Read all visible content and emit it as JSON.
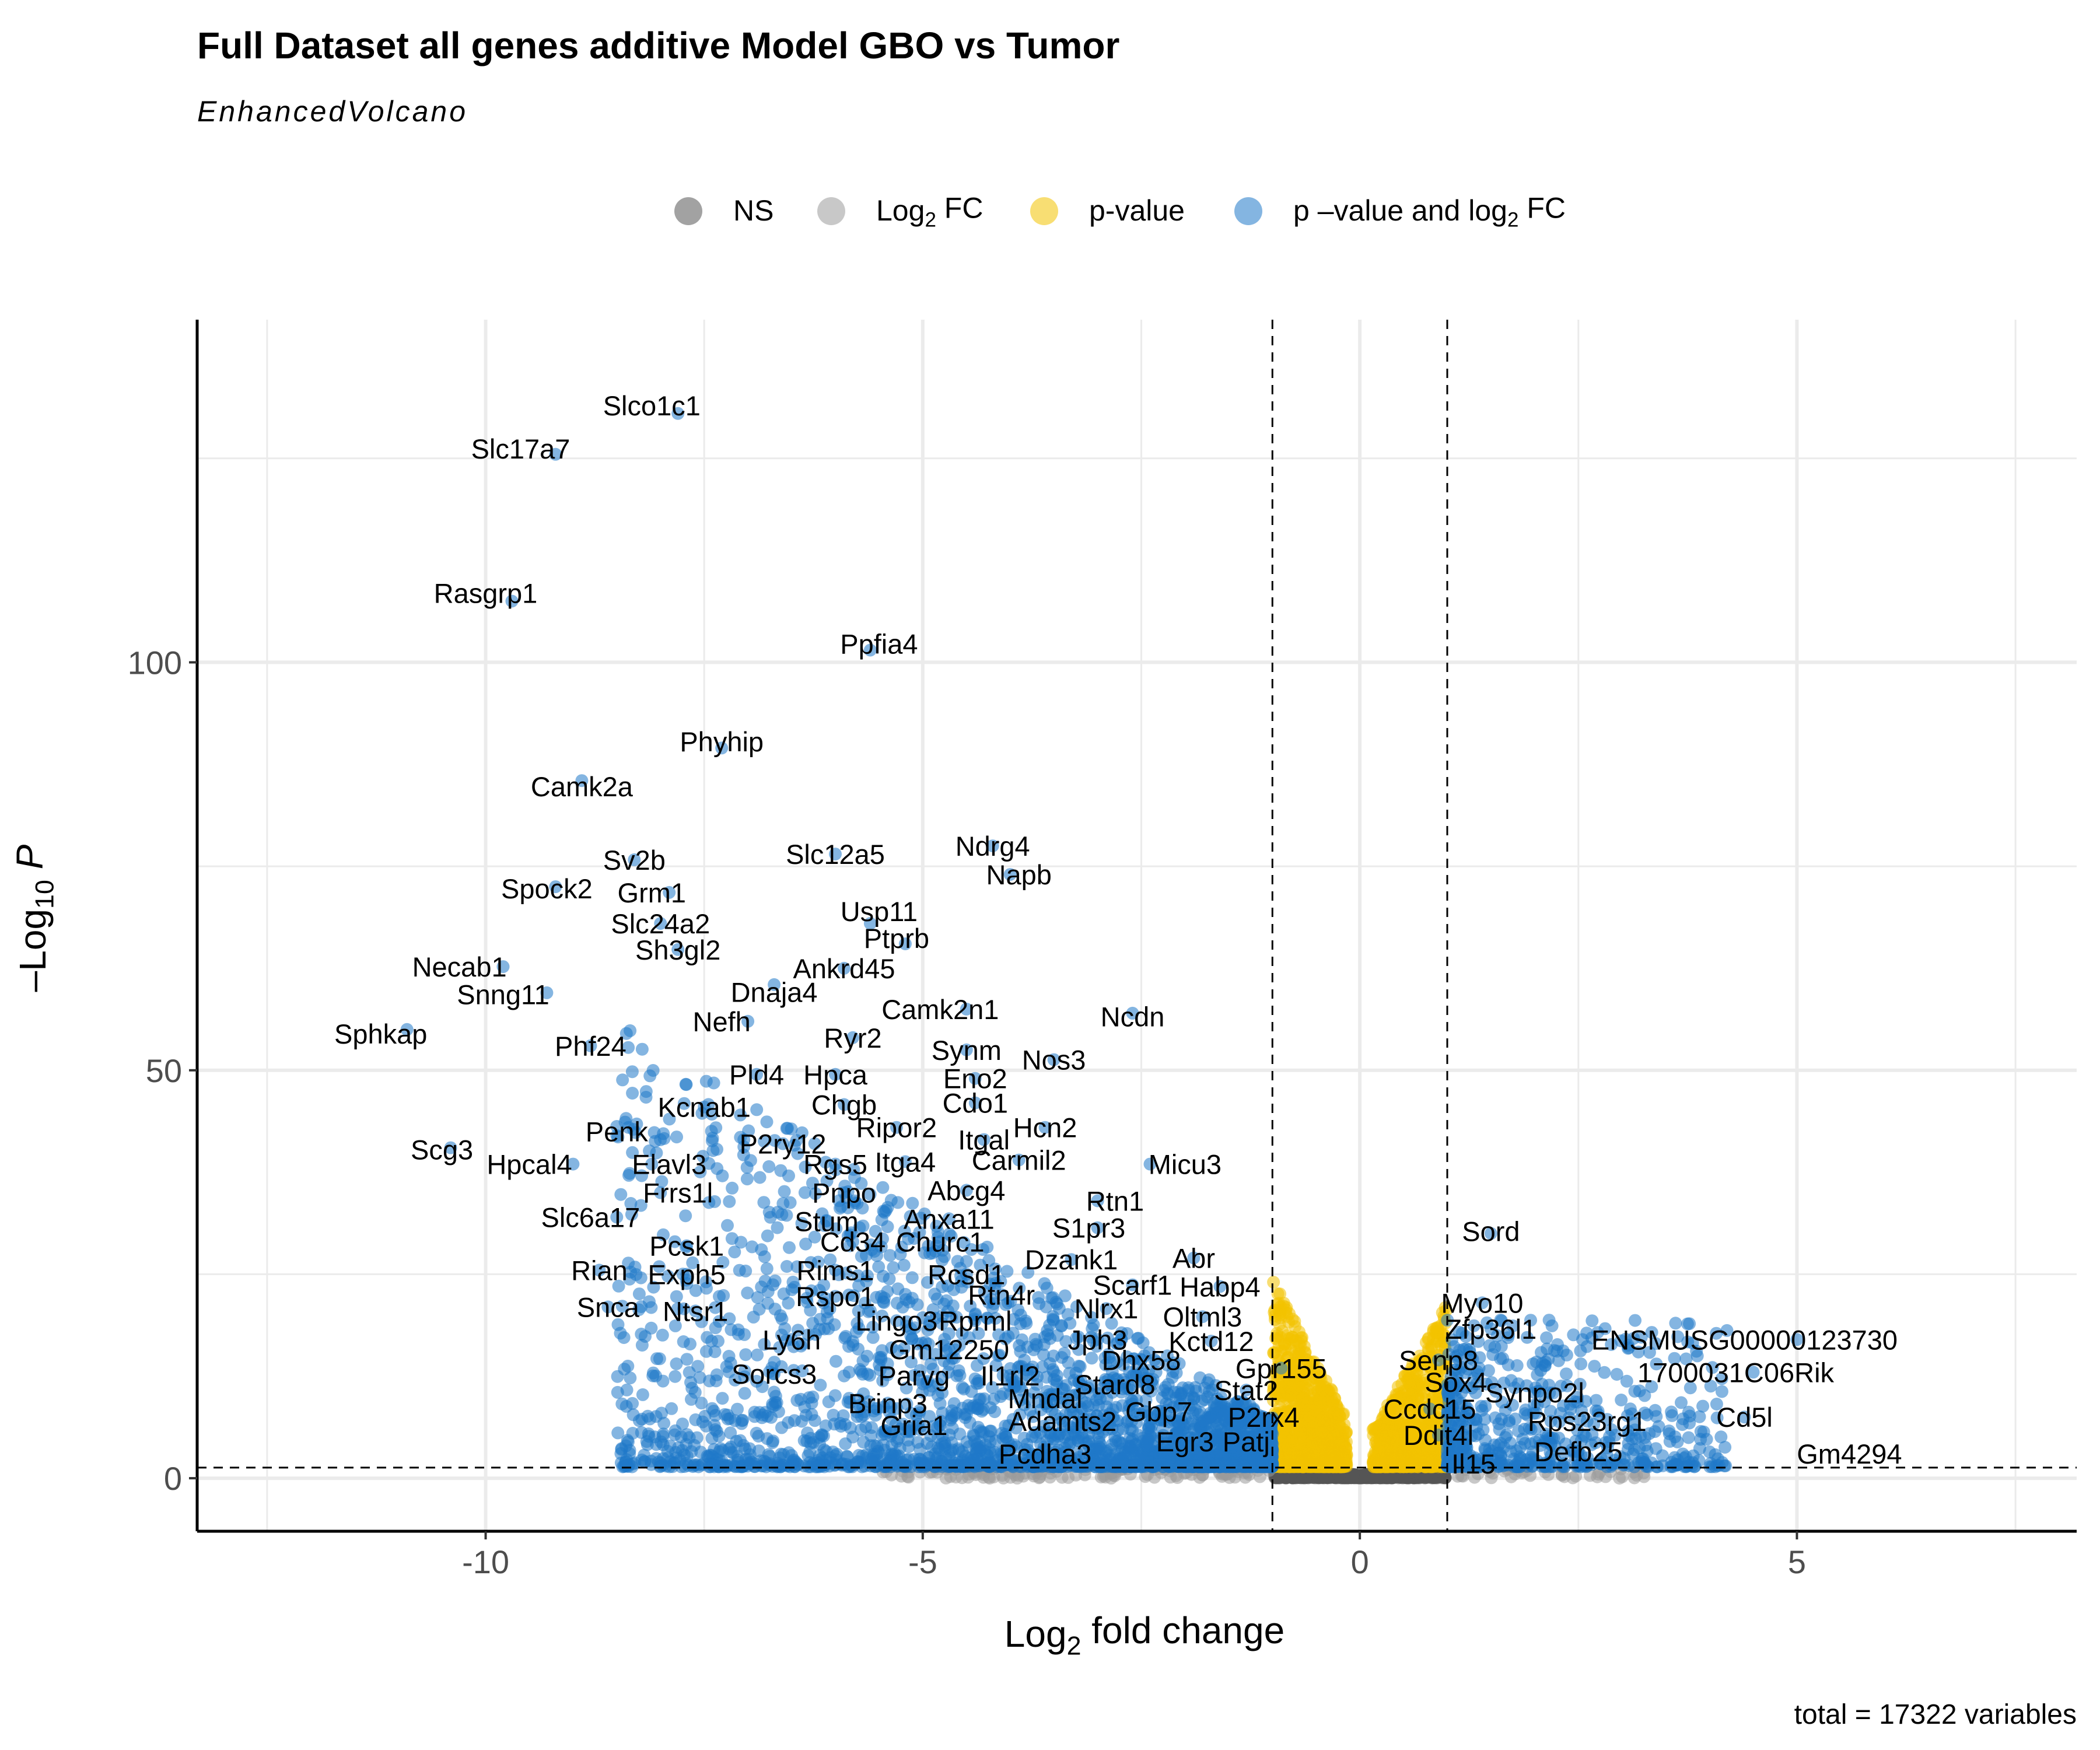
{
  "chart_data": {
    "type": "scatter",
    "title": "Full Dataset all genes additive Model GBO vs Tumor",
    "subtitle": "EnhancedVolcano",
    "caption": "total = 17322 variables",
    "xlabel": {
      "prefix": "Log",
      "sub": "2",
      "suffix": " fold change"
    },
    "ylabel": {
      "prefix": "–Log",
      "sub": "10",
      "suffix": " P"
    },
    "xlim": [
      -13.3,
      8.2
    ],
    "ylim": [
      -6.5,
      142
    ],
    "x_ticks": [
      {
        "value": -10,
        "label": "-10"
      },
      {
        "value": -5,
        "label": "-5"
      },
      {
        "value": 0,
        "label": "0"
      },
      {
        "value": 5,
        "label": "5"
      }
    ],
    "y_ticks": [
      {
        "value": 0,
        "label": "0"
      },
      {
        "value": 50,
        "label": "50"
      },
      {
        "value": 100,
        "label": "100"
      }
    ],
    "fc_cutoff": 1,
    "p_cutoff_log10": 1.3,
    "grid": true,
    "legend_position": "top",
    "legend": [
      {
        "key": "ns",
        "prefix": "NS",
        "sub": "",
        "suffix": "",
        "color": "#555555"
      },
      {
        "key": "fc",
        "prefix": "Log",
        "sub": "2",
        "suffix": " FC",
        "color": "#9a9a9a"
      },
      {
        "key": "p",
        "prefix": "p-value",
        "sub": "",
        "suffix": "",
        "color": "#f2c200"
      },
      {
        "key": "both",
        "prefix": "p –value and log",
        "sub": "2",
        "suffix": " FC",
        "color": "#1f78c8"
      }
    ],
    "labeled_genes": [
      {
        "name": "Slco1c1",
        "x": -7.8,
        "y": 130.5,
        "lx": -8.1,
        "ly": 131.5
      },
      {
        "name": "Slc17a7",
        "x": -9.2,
        "y": 125.5,
        "lx": -9.6,
        "ly": 126.2
      },
      {
        "name": "Rasgrp1",
        "x": -9.7,
        "y": 107.5,
        "lx": -10.0,
        "ly": 108.5
      },
      {
        "name": "Ppfia4",
        "x": -5.6,
        "y": 101.5,
        "lx": -5.5,
        "ly": 102.3
      },
      {
        "name": "Phyhip",
        "x": -7.3,
        "y": 89.5,
        "lx": -7.3,
        "ly": 90.3
      },
      {
        "name": "Camk2a",
        "x": -8.9,
        "y": 85.5,
        "lx": -8.9,
        "ly": 84.8
      },
      {
        "name": "Sv2b",
        "x": -8.3,
        "y": 75.8,
        "lx": -8.3,
        "ly": 75.8
      },
      {
        "name": "Slc12a5",
        "x": -6.0,
        "y": 76.5,
        "lx": -6.0,
        "ly": 76.5
      },
      {
        "name": "Ndrg4",
        "x": -4.2,
        "y": 77.5,
        "lx": -4.2,
        "ly": 77.5
      },
      {
        "name": "Napb",
        "x": -4.0,
        "y": 74.0,
        "lx": -3.9,
        "ly": 74.0
      },
      {
        "name": "Spock2",
        "x": -9.2,
        "y": 72.5,
        "lx": -9.3,
        "ly": 72.3
      },
      {
        "name": "Grm1",
        "x": -7.9,
        "y": 71.8,
        "lx": -8.1,
        "ly": 71.8
      },
      {
        "name": "Usp11",
        "x": -5.6,
        "y": 68.0,
        "lx": -5.5,
        "ly": 69.5
      },
      {
        "name": "Slc24a2",
        "x": -8.0,
        "y": 68.0,
        "lx": -8.0,
        "ly": 68.0
      },
      {
        "name": "Ptprb",
        "x": -5.2,
        "y": 65.5,
        "lx": -5.3,
        "ly": 66.2
      },
      {
        "name": "Sh3gl2",
        "x": -7.8,
        "y": 64.8,
        "lx": -7.8,
        "ly": 64.8
      },
      {
        "name": "Ankrd45",
        "x": -5.9,
        "y": 62.5,
        "lx": -5.9,
        "ly": 62.5
      },
      {
        "name": "Necab1",
        "x": -9.8,
        "y": 62.7,
        "lx": -10.3,
        "ly": 62.7
      },
      {
        "name": "Snng11",
        "x": -9.3,
        "y": 59.5,
        "lx": -9.8,
        "ly": 59.3
      },
      {
        "name": "Dnaja4",
        "x": -6.7,
        "y": 60.5,
        "lx": -6.7,
        "ly": 59.6
      },
      {
        "name": "Camk2n1",
        "x": -4.5,
        "y": 57.5,
        "lx": -4.8,
        "ly": 57.5
      },
      {
        "name": "Ncdn",
        "x": -2.6,
        "y": 57.0,
        "lx": -2.6,
        "ly": 56.6
      },
      {
        "name": "Nefh",
        "x": -7.0,
        "y": 56.0,
        "lx": -7.3,
        "ly": 56.0
      },
      {
        "name": "Sphkap",
        "x": -10.9,
        "y": 55.0,
        "lx": -11.2,
        "ly": 54.5
      },
      {
        "name": "Ryr2",
        "x": -5.8,
        "y": 54.0,
        "lx": -5.8,
        "ly": 54.0
      },
      {
        "name": "Phf24",
        "x": -8.8,
        "y": 53.0,
        "lx": -8.8,
        "ly": 53.0
      },
      {
        "name": "Synm",
        "x": -4.5,
        "y": 52.5,
        "lx": -4.5,
        "ly": 52.5
      },
      {
        "name": "Nos3",
        "x": -3.5,
        "y": 51.3,
        "lx": -3.5,
        "ly": 51.3
      },
      {
        "name": "Pld4",
        "x": -6.9,
        "y": 49.5,
        "lx": -6.9,
        "ly": 49.5
      },
      {
        "name": "Hpca",
        "x": -6.0,
        "y": 49.5,
        "lx": -6.0,
        "ly": 49.5
      },
      {
        "name": "Eno2",
        "x": -4.4,
        "y": 49.0,
        "lx": -4.4,
        "ly": 49.0
      },
      {
        "name": "Kcnab1",
        "x": -7.5,
        "y": 45.5,
        "lx": -7.5,
        "ly": 45.5
      },
      {
        "name": "Chgb",
        "x": -5.9,
        "y": 45.8,
        "lx": -5.9,
        "ly": 45.8
      },
      {
        "name": "Cdo1",
        "x": -4.4,
        "y": 46.0,
        "lx": -4.4,
        "ly": 46.0
      },
      {
        "name": "Penk",
        "x": -8.5,
        "y": 42.0,
        "lx": -8.5,
        "ly": 42.5
      },
      {
        "name": "Ripor2",
        "x": -5.3,
        "y": 43.0,
        "lx": -5.3,
        "ly": 43.0
      },
      {
        "name": "Hcn2",
        "x": -3.6,
        "y": 43.0,
        "lx": -3.6,
        "ly": 43.0
      },
      {
        "name": "Itgal",
        "x": -4.3,
        "y": 41.5,
        "lx": -4.3,
        "ly": 41.5
      },
      {
        "name": "Scg3",
        "x": -10.4,
        "y": 40.5,
        "lx": -10.5,
        "ly": 40.3
      },
      {
        "name": "P2ry12",
        "x": -6.6,
        "y": 41.0,
        "lx": -6.6,
        "ly": 41.0
      },
      {
        "name": "Hpcal4",
        "x": -9.0,
        "y": 38.5,
        "lx": -9.5,
        "ly": 38.5
      },
      {
        "name": "Elavl3",
        "x": -8.1,
        "y": 38.5,
        "lx": -7.9,
        "ly": 38.5
      },
      {
        "name": "Rgs5",
        "x": -6.0,
        "y": 38.5,
        "lx": -6.0,
        "ly": 38.5
      },
      {
        "name": "Itga4",
        "x": -5.2,
        "y": 38.8,
        "lx": -5.2,
        "ly": 38.8
      },
      {
        "name": "Carmil2",
        "x": -3.9,
        "y": 39.0,
        "lx": -3.9,
        "ly": 39.0
      },
      {
        "name": "Micu3",
        "x": -2.4,
        "y": 38.5,
        "lx": -2.0,
        "ly": 38.5
      },
      {
        "name": "Frrs1l",
        "x": -8.0,
        "y": 35.0,
        "lx": -7.8,
        "ly": 35.0
      },
      {
        "name": "Pnpo",
        "x": -5.9,
        "y": 35.0,
        "lx": -5.9,
        "ly": 35.0
      },
      {
        "name": "Abcg4",
        "x": -4.5,
        "y": 35.3,
        "lx": -4.5,
        "ly": 35.3
      },
      {
        "name": "Rtn1",
        "x": -3.0,
        "y": 34.0,
        "lx": -2.8,
        "ly": 34.0
      },
      {
        "name": "Slc6a17",
        "x": -8.5,
        "y": 32.0,
        "lx": -8.8,
        "ly": 32.0
      },
      {
        "name": "Anxa11",
        "x": -4.7,
        "y": 31.8,
        "lx": -4.7,
        "ly": 31.8
      },
      {
        "name": "Stum",
        "x": -6.1,
        "y": 31.5,
        "lx": -6.1,
        "ly": 31.5
      },
      {
        "name": "S1pr3",
        "x": -3.0,
        "y": 30.7,
        "lx": -3.1,
        "ly": 30.7
      },
      {
        "name": "Sord",
        "x": 1.5,
        "y": 30.0,
        "lx": 1.5,
        "ly": 30.3
      },
      {
        "name": "Cd34",
        "x": -5.8,
        "y": 29.0,
        "lx": -5.8,
        "ly": 29.0
      },
      {
        "name": "Churc1",
        "x": -4.8,
        "y": 29.0,
        "lx": -4.8,
        "ly": 29.0
      },
      {
        "name": "Pcsk1",
        "x": -7.7,
        "y": 28.5,
        "lx": -7.7,
        "ly": 28.5
      },
      {
        "name": "Dzank1",
        "x": -3.3,
        "y": 26.8,
        "lx": -3.3,
        "ly": 26.8
      },
      {
        "name": "Abr",
        "x": -1.9,
        "y": 27.0,
        "lx": -1.9,
        "ly": 27.0
      },
      {
        "name": "Rian",
        "x": -8.7,
        "y": 25.5,
        "lx": -8.7,
        "ly": 25.5
      },
      {
        "name": "Rims1",
        "x": -6.0,
        "y": 25.5,
        "lx": -6.0,
        "ly": 25.5
      },
      {
        "name": "Exph5",
        "x": -7.7,
        "y": 25.0,
        "lx": -7.7,
        "ly": 25.0
      },
      {
        "name": "Rcsd1",
        "x": -4.5,
        "y": 25.0,
        "lx": -4.5,
        "ly": 25.0
      },
      {
        "name": "Habp4",
        "x": -1.6,
        "y": 23.5,
        "lx": -1.6,
        "ly": 23.5
      },
      {
        "name": "Scarf1",
        "x": -2.6,
        "y": 23.7,
        "lx": -2.6,
        "ly": 23.7
      },
      {
        "name": "Rspo1",
        "x": -6.0,
        "y": 22.3,
        "lx": -6.0,
        "ly": 22.3
      },
      {
        "name": "Rtn4r",
        "x": -4.1,
        "y": 22.5,
        "lx": -4.1,
        "ly": 22.5
      },
      {
        "name": "Myo10",
        "x": 1.4,
        "y": 21.5,
        "lx": 1.4,
        "ly": 21.5
      },
      {
        "name": "Snca",
        "x": -8.6,
        "y": 21.0,
        "lx": -8.6,
        "ly": 21.0
      },
      {
        "name": "Ntsr1",
        "x": -7.6,
        "y": 20.5,
        "lx": -7.6,
        "ly": 20.5
      },
      {
        "name": "Nlrx1",
        "x": -2.9,
        "y": 20.8,
        "lx": -2.9,
        "ly": 20.8
      },
      {
        "name": "Oltml3",
        "x": -1.8,
        "y": 19.8,
        "lx": -1.8,
        "ly": 19.8
      },
      {
        "name": "Lingo3",
        "x": -5.3,
        "y": 19.3,
        "lx": -5.3,
        "ly": 19.3
      },
      {
        "name": "Rprml",
        "x": -4.4,
        "y": 19.3,
        "lx": -4.4,
        "ly": 19.3
      },
      {
        "name": "Zfp36l1",
        "x": 1.5,
        "y": 18.3,
        "lx": 1.5,
        "ly": 18.3
      },
      {
        "name": "ENSMUSG00000123730",
        "x": 5.0,
        "y": 17.0,
        "lx": 4.4,
        "ly": 17.0
      },
      {
        "name": "Ly6h",
        "x": -6.5,
        "y": 17.0,
        "lx": -6.5,
        "ly": 17.0
      },
      {
        "name": "Jph3",
        "x": -3.0,
        "y": 17.0,
        "lx": -3.0,
        "ly": 17.0
      },
      {
        "name": "Kctd12",
        "x": -1.7,
        "y": 16.8,
        "lx": -1.7,
        "ly": 16.8
      },
      {
        "name": "Gm12250",
        "x": -4.7,
        "y": 15.8,
        "lx": -4.7,
        "ly": 15.8
      },
      {
        "name": "Senp8",
        "x": 0.9,
        "y": 14.5,
        "lx": 0.9,
        "ly": 14.5
      },
      {
        "name": "Dhx58",
        "x": -2.5,
        "y": 14.5,
        "lx": -2.5,
        "ly": 14.5
      },
      {
        "name": "Gpr155",
        "x": -0.9,
        "y": 13.5,
        "lx": -0.9,
        "ly": 13.5
      },
      {
        "name": "1700031C06Rik",
        "x": 4.5,
        "y": 13.0,
        "lx": 4.3,
        "ly": 13.0
      },
      {
        "name": "Sorcs3",
        "x": -6.7,
        "y": 12.8,
        "lx": -6.7,
        "ly": 12.8
      },
      {
        "name": "Parvg",
        "x": -5.1,
        "y": 12.6,
        "lx": -5.1,
        "ly": 12.6
      },
      {
        "name": "Il1rl2",
        "x": -4.0,
        "y": 12.6,
        "lx": -4.0,
        "ly": 12.6
      },
      {
        "name": "Sox4",
        "x": 1.1,
        "y": 11.8,
        "lx": 1.1,
        "ly": 11.8
      },
      {
        "name": "Stard8",
        "x": -2.8,
        "y": 11.5,
        "lx": -2.8,
        "ly": 11.5
      },
      {
        "name": "Stat2",
        "x": -1.3,
        "y": 10.8,
        "lx": -1.3,
        "ly": 10.8
      },
      {
        "name": "Synpo2l",
        "x": 2.0,
        "y": 10.5,
        "lx": 2.0,
        "ly": 10.5
      },
      {
        "name": "Mndal",
        "x": -3.6,
        "y": 9.8,
        "lx": -3.6,
        "ly": 9.8
      },
      {
        "name": "Brinp3",
        "x": -5.4,
        "y": 9.2,
        "lx": -5.4,
        "ly": 9.2
      },
      {
        "name": "Ccdc15",
        "x": 0.8,
        "y": 8.5,
        "lx": 0.8,
        "ly": 8.5
      },
      {
        "name": "Gbp7",
        "x": -2.3,
        "y": 8.2,
        "lx": -2.3,
        "ly": 8.2
      },
      {
        "name": "Cd5l",
        "x": 4.4,
        "y": 7.5,
        "lx": 4.4,
        "ly": 7.5
      },
      {
        "name": "P2rx4",
        "x": -1.1,
        "y": 7.5,
        "lx": -1.1,
        "ly": 7.5
      },
      {
        "name": "Adamts2",
        "x": -3.4,
        "y": 7.0,
        "lx": -3.4,
        "ly": 7.0
      },
      {
        "name": "Rps23rg1",
        "x": 2.6,
        "y": 7.0,
        "lx": 2.6,
        "ly": 7.0
      },
      {
        "name": "Gria1",
        "x": -5.1,
        "y": 6.5,
        "lx": -5.1,
        "ly": 6.5
      },
      {
        "name": "Ddit4l",
        "x": 0.9,
        "y": 5.3,
        "lx": 0.9,
        "ly": 5.3
      },
      {
        "name": "Egr3",
        "x": -2.0,
        "y": 4.5,
        "lx": -2.0,
        "ly": 4.5
      },
      {
        "name": "Patj",
        "x": -1.3,
        "y": 4.5,
        "lx": -1.3,
        "ly": 4.5
      },
      {
        "name": "Pcdha3",
        "x": -4.0,
        "y": 3.5,
        "lx": -3.6,
        "ly": 3.0
      },
      {
        "name": "Defb25",
        "x": 2.5,
        "y": 3.3,
        "lx": 2.5,
        "ly": 3.3
      },
      {
        "name": "Gm4294",
        "x": 3.8,
        "y": 1.5,
        "lx": 5.6,
        "ly": 3.0
      },
      {
        "name": "Il15",
        "x": 1.3,
        "y": 1.8,
        "lx": 1.3,
        "ly": 1.8
      }
    ]
  }
}
